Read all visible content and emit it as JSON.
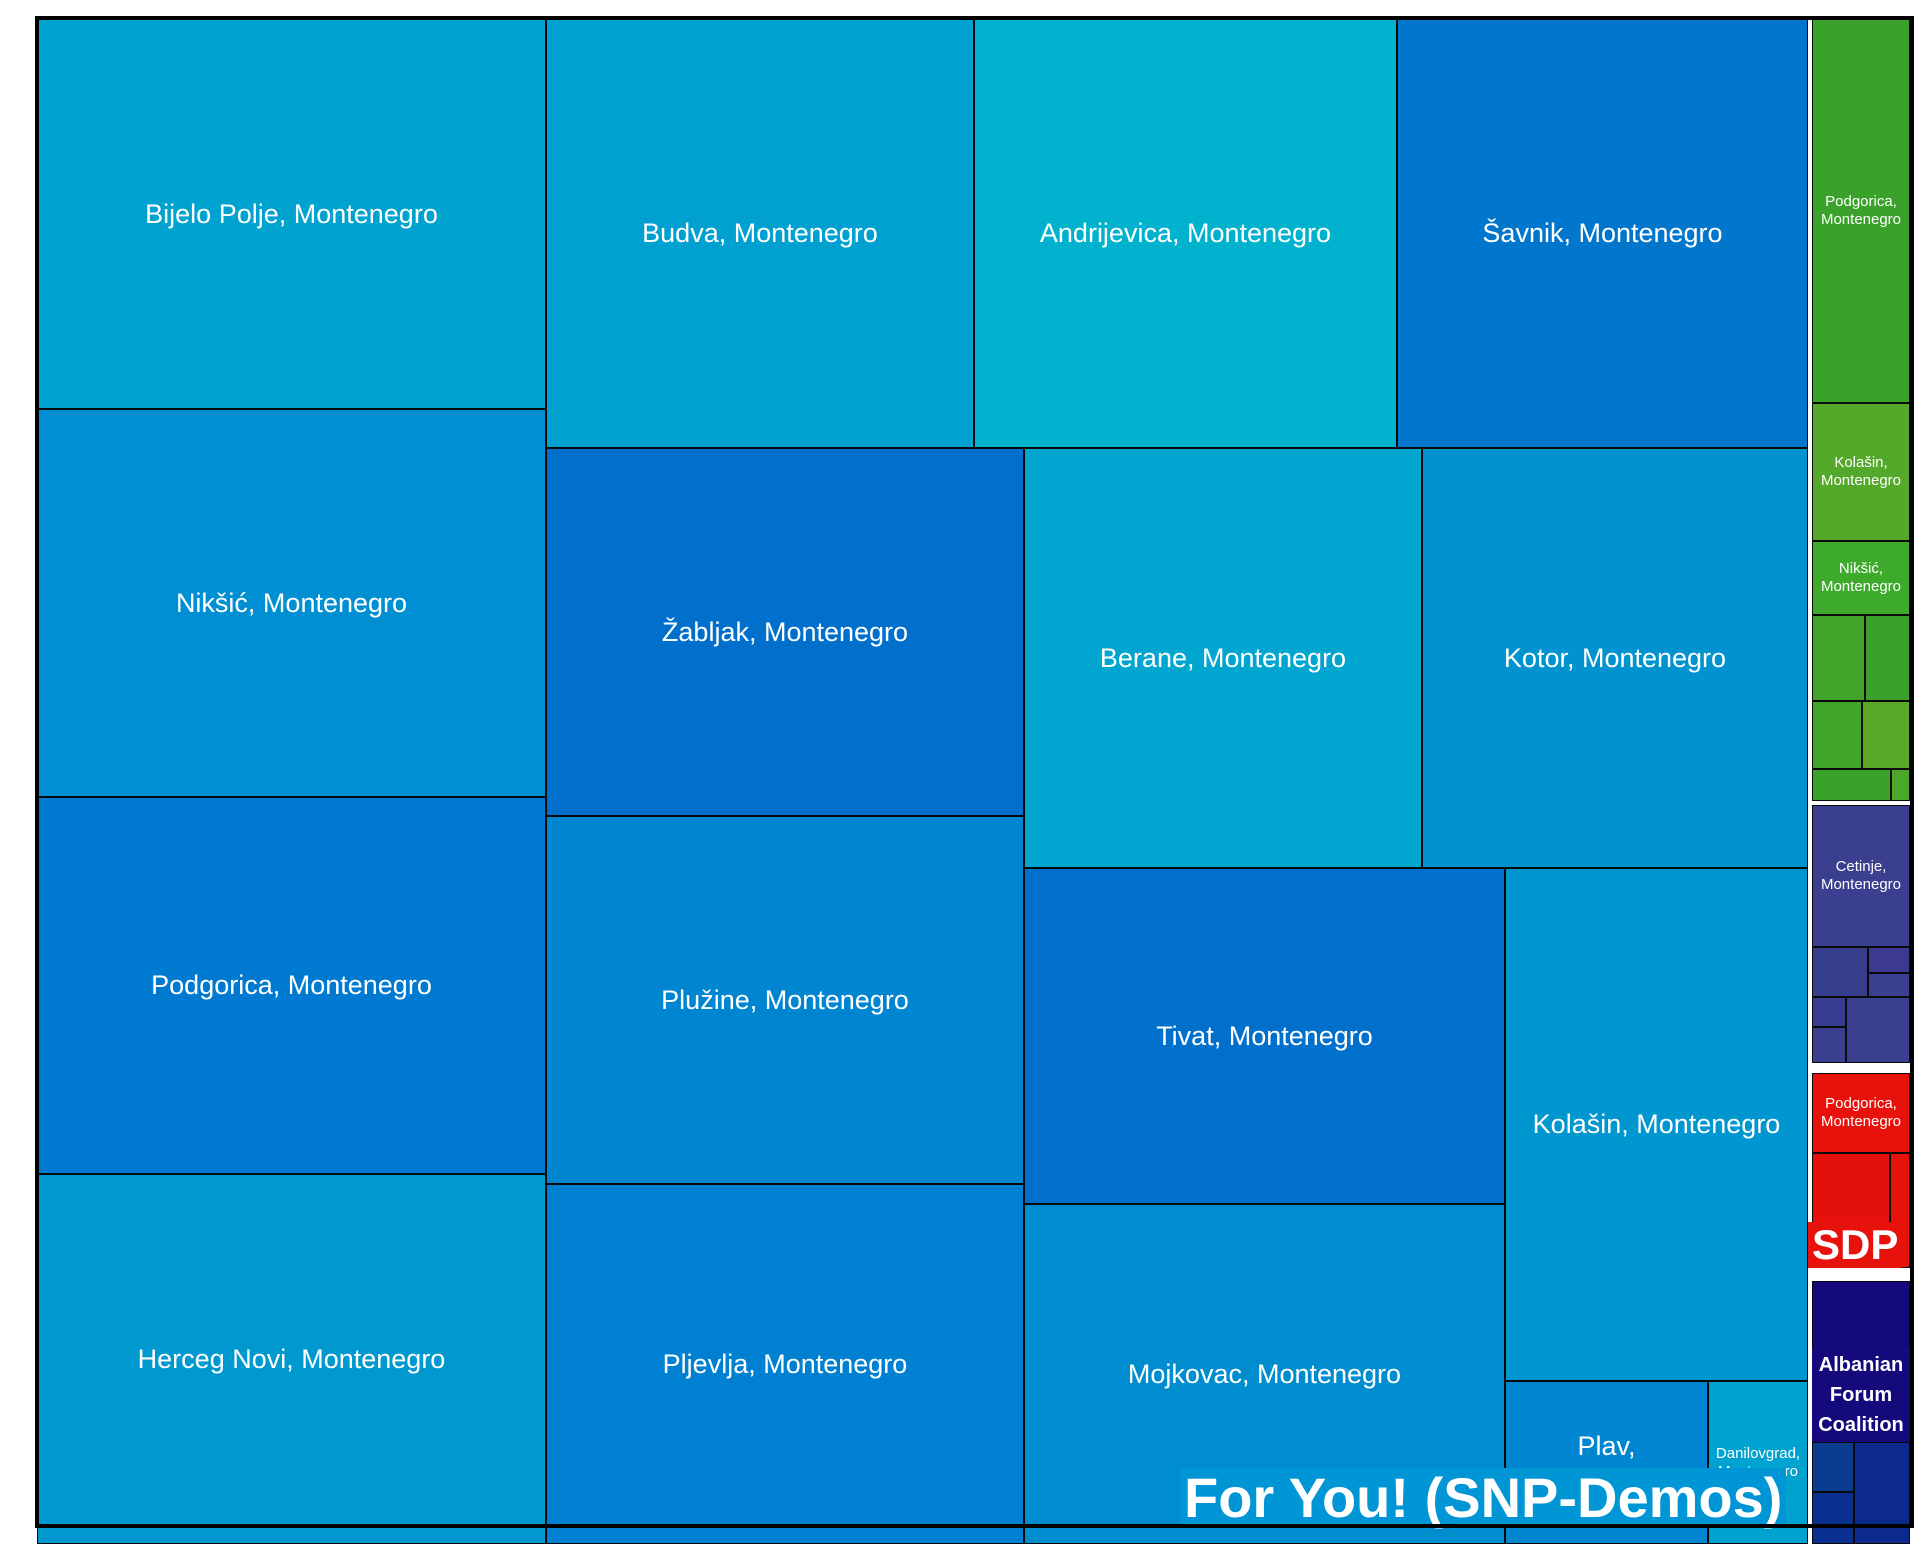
{
  "chart_data": {
    "type": "treemap",
    "groups": [
      {
        "name": "For You! (SNP-Demos)",
        "color": "#0096d6",
        "items": [
          {
            "label": "Bijelo Polje, Montenegro",
            "color": "#00a2cf"
          },
          {
            "label": "Nikšić, Montenegro",
            "color": "#008fd2"
          },
          {
            "label": "Podgorica, Montenegro",
            "color": "#0079d0"
          },
          {
            "label": "Herceg Novi, Montenegro",
            "color": "#0099cf"
          },
          {
            "label": "Budva, Montenegro",
            "color": "#00a0d0"
          },
          {
            "label": "Andrijevica, Montenegro",
            "color": "#00b2cd"
          },
          {
            "label": "Šavnik, Montenegro",
            "color": "#0076cd"
          },
          {
            "label": "Žabljak, Montenegro",
            "color": "#0070cc"
          },
          {
            "label": "Plužine, Montenegro",
            "color": "#0085d0"
          },
          {
            "label": "Pljevlja, Montenegro",
            "color": "#0080d0"
          },
          {
            "label": "Berane, Montenegro",
            "color": "#00a6cf"
          },
          {
            "label": "Kotor, Montenegro",
            "color": "#0093d0"
          },
          {
            "label": "Tivat, Montenegro",
            "color": "#0070cc"
          },
          {
            "label": "Mojkovac, Montenegro",
            "color": "#008dd0"
          },
          {
            "label": "Kolašin, Montenegro",
            "color": "#0096d0"
          },
          {
            "label": "Plav, Montenegro",
            "color": "#0086d0"
          },
          {
            "label": "Danilovgrad, Montenegro",
            "color": "#00a2cf"
          }
        ]
      },
      {
        "name": "",
        "color": "#3aa22a",
        "items": [
          {
            "label": "Podgorica, Montenegro",
            "color": "#3aa22a"
          },
          {
            "label": "Kolašin, Montenegro",
            "color": "#54a82a"
          },
          {
            "label": "Nikšić, Montenegro",
            "color": "#3eaa2c"
          },
          {
            "label": "",
            "color": "#42a42a"
          },
          {
            "label": "",
            "color": "#3aa22a"
          },
          {
            "label": "",
            "color": "#3ea42a"
          },
          {
            "label": "",
            "color": "#5aa82a"
          },
          {
            "label": "",
            "color": "#3aa22a"
          },
          {
            "label": "",
            "color": "#4ca62a"
          }
        ]
      },
      {
        "name": "",
        "color": "#3a3f8f",
        "items": [
          {
            "label": "Cetinje, Montenegro",
            "color": "#3a3f8f"
          },
          {
            "label": "",
            "color": "#363d8c"
          },
          {
            "label": "",
            "color": "#3c3a90"
          },
          {
            "label": "",
            "color": "#3a3f8f"
          },
          {
            "label": "",
            "color": "#373c8e"
          },
          {
            "label": "",
            "color": "#3a3f8f"
          },
          {
            "label": "",
            "color": "#3a3f8f"
          }
        ]
      },
      {
        "name": "SDP",
        "color": "#e8120c",
        "items": [
          {
            "label": "Podgorica, Montenegro",
            "color": "#e8120c"
          },
          {
            "label": "",
            "color": "#e3100c"
          },
          {
            "label": "",
            "color": "#e8120c"
          }
        ]
      },
      {
        "name": "Albanian Forum Coalition",
        "color": "#140a7c",
        "items": [
          {
            "label": "",
            "color": "#140a7c"
          },
          {
            "label": "",
            "color": "#0a3c90"
          },
          {
            "label": "",
            "color": "#0a3090"
          },
          {
            "label": "",
            "color": "#0c2a8c"
          }
        ]
      }
    ]
  }
}
